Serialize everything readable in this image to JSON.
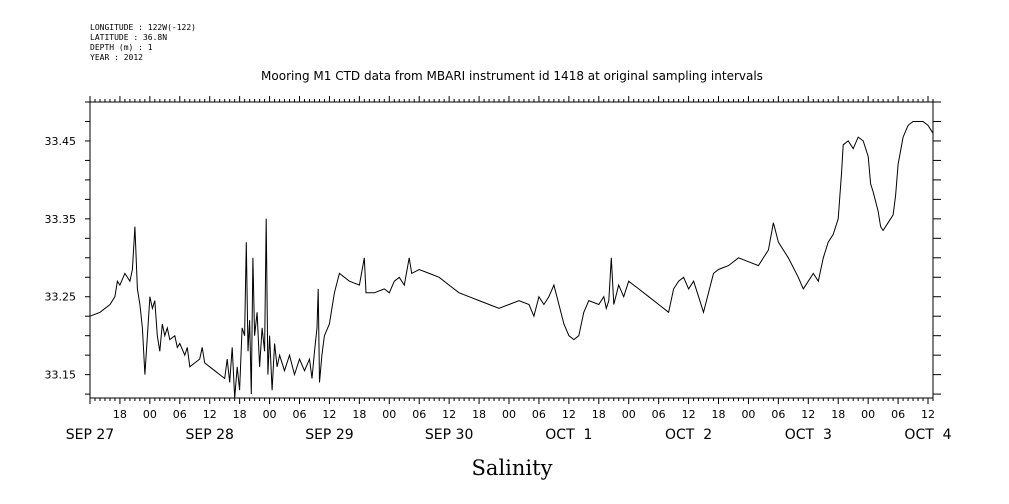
{
  "header": {
    "lines": [
      "LONGITUDE : 122W(-122)",
      "LATITUDE : 36.8N",
      "DEPTH (m) : 1",
      "YEAR : 2012"
    ]
  },
  "chart_data": {
    "type": "line",
    "title": "Mooring M1 CTD data from MBARI instrument id 1418 at original sampling intervals",
    "xlabel": "Salinity",
    "ylabel": "",
    "xlim": [
      "2012-09-27 12:00",
      "2012-10-04 13:00"
    ],
    "ylim": [
      33.12,
      33.5
    ],
    "yticks": [
      33.15,
      33.25,
      33.35,
      33.45
    ],
    "ytick_labels": [
      "33.15",
      "33.25",
      "33.35",
      "33.45"
    ],
    "xtick_hours": [
      {
        "t": "2012-09-27 18:00",
        "label": "18"
      },
      {
        "t": "2012-09-28 00:00",
        "label": "00"
      },
      {
        "t": "2012-09-28 06:00",
        "label": "06"
      },
      {
        "t": "2012-09-28 12:00",
        "label": "12"
      },
      {
        "t": "2012-09-28 18:00",
        "label": "18"
      },
      {
        "t": "2012-09-29 00:00",
        "label": "00"
      },
      {
        "t": "2012-09-29 06:00",
        "label": "06"
      },
      {
        "t": "2012-09-29 12:00",
        "label": "12"
      },
      {
        "t": "2012-09-29 18:00",
        "label": "18"
      },
      {
        "t": "2012-09-30 00:00",
        "label": "00"
      },
      {
        "t": "2012-09-30 06:00",
        "label": "06"
      },
      {
        "t": "2012-09-30 12:00",
        "label": "12"
      },
      {
        "t": "2012-09-30 18:00",
        "label": "18"
      },
      {
        "t": "2012-10-01 00:00",
        "label": "00"
      },
      {
        "t": "2012-10-01 06:00",
        "label": "06"
      },
      {
        "t": "2012-10-01 12:00",
        "label": "12"
      },
      {
        "t": "2012-10-01 18:00",
        "label": "18"
      },
      {
        "t": "2012-10-02 00:00",
        "label": "00"
      },
      {
        "t": "2012-10-02 06:00",
        "label": "06"
      },
      {
        "t": "2012-10-02 12:00",
        "label": "12"
      },
      {
        "t": "2012-10-02 18:00",
        "label": "18"
      },
      {
        "t": "2012-10-03 00:00",
        "label": "00"
      },
      {
        "t": "2012-10-03 06:00",
        "label": "06"
      },
      {
        "t": "2012-10-03 12:00",
        "label": "12"
      },
      {
        "t": "2012-10-03 18:00",
        "label": "18"
      },
      {
        "t": "2012-10-04 00:00",
        "label": "00"
      },
      {
        "t": "2012-10-04 06:00",
        "label": "06"
      },
      {
        "t": "2012-10-04 12:00",
        "label": "12"
      }
    ],
    "xtick_days": [
      {
        "t": "2012-09-27 12:00",
        "label": "SEP 27"
      },
      {
        "t": "2012-09-28 12:00",
        "label": "SEP 28"
      },
      {
        "t": "2012-09-29 12:00",
        "label": "SEP 29"
      },
      {
        "t": "2012-09-30 12:00",
        "label": "SEP 30"
      },
      {
        "t": "2012-10-01 12:00",
        "label": "OCT  1"
      },
      {
        "t": "2012-10-02 12:00",
        "label": "OCT  2"
      },
      {
        "t": "2012-10-03 12:00",
        "label": "OCT  3"
      },
      {
        "t": "2012-10-04 12:00",
        "label": "OCT  4"
      }
    ],
    "grid": false,
    "series": [
      {
        "color": "#000000",
        "points": [
          [
            "2012-09-27 12:00",
            33.225
          ],
          [
            "2012-09-27 14:00",
            33.23
          ],
          [
            "2012-09-27 16:00",
            33.24
          ],
          [
            "2012-09-27 17:00",
            33.25
          ],
          [
            "2012-09-27 17:30",
            33.27
          ],
          [
            "2012-09-27 18:00",
            33.265
          ],
          [
            "2012-09-27 19:00",
            33.28
          ],
          [
            "2012-09-27 20:00",
            33.27
          ],
          [
            "2012-09-27 20:30",
            33.285
          ],
          [
            "2012-09-27 21:00",
            33.34
          ],
          [
            "2012-09-27 21:30",
            33.26
          ],
          [
            "2012-09-27 22:00",
            33.24
          ],
          [
            "2012-09-27 22:30",
            33.21
          ],
          [
            "2012-09-27 23:00",
            33.15
          ],
          [
            "2012-09-27 23:30",
            33.2
          ],
          [
            "2012-09-28 00:00",
            33.25
          ],
          [
            "2012-09-28 00:30",
            33.235
          ],
          [
            "2012-09-28 01:00",
            33.245
          ],
          [
            "2012-09-28 01:30",
            33.2
          ],
          [
            "2012-09-28 02:00",
            33.18
          ],
          [
            "2012-09-28 02:30",
            33.215
          ],
          [
            "2012-09-28 03:00",
            33.2
          ],
          [
            "2012-09-28 03:30",
            33.21
          ],
          [
            "2012-09-28 04:00",
            33.195
          ],
          [
            "2012-09-28 05:00",
            33.2
          ],
          [
            "2012-09-28 05:30",
            33.185
          ],
          [
            "2012-09-28 06:00",
            33.19
          ],
          [
            "2012-09-28 07:00",
            33.175
          ],
          [
            "2012-09-28 07:30",
            33.185
          ],
          [
            "2012-09-28 08:00",
            33.16
          ],
          [
            "2012-09-28 09:00",
            33.165
          ],
          [
            "2012-09-28 10:00",
            33.17
          ],
          [
            "2012-09-28 10:30",
            33.185
          ],
          [
            "2012-09-28 11:00",
            33.165
          ],
          [
            "2012-09-28 12:00",
            33.16
          ],
          [
            "2012-09-28 13:00",
            33.155
          ],
          [
            "2012-09-28 14:00",
            33.15
          ],
          [
            "2012-09-28 15:00",
            33.145
          ],
          [
            "2012-09-28 15:30",
            33.17
          ],
          [
            "2012-09-28 16:00",
            33.14
          ],
          [
            "2012-09-28 16:30",
            33.185
          ],
          [
            "2012-09-28 17:00",
            33.12
          ],
          [
            "2012-09-28 17:30",
            33.16
          ],
          [
            "2012-09-28 18:00",
            33.13
          ],
          [
            "2012-09-28 18:30",
            33.21
          ],
          [
            "2012-09-28 19:00",
            33.2
          ],
          [
            "2012-09-28 19:20",
            33.32
          ],
          [
            "2012-09-28 19:40",
            33.18
          ],
          [
            "2012-09-28 20:00",
            33.22
          ],
          [
            "2012-09-28 20:20",
            33.125
          ],
          [
            "2012-09-28 20:40",
            33.3
          ],
          [
            "2012-09-28 21:00",
            33.2
          ],
          [
            "2012-09-28 21:30",
            33.23
          ],
          [
            "2012-09-28 22:00",
            33.16
          ],
          [
            "2012-09-28 22:30",
            33.21
          ],
          [
            "2012-09-28 23:00",
            33.18
          ],
          [
            "2012-09-28 23:20",
            33.35
          ],
          [
            "2012-09-28 23:40",
            33.15
          ],
          [
            "2012-09-29 00:00",
            33.2
          ],
          [
            "2012-09-29 00:30",
            33.13
          ],
          [
            "2012-09-29 01:00",
            33.19
          ],
          [
            "2012-09-29 01:30",
            33.16
          ],
          [
            "2012-09-29 02:00",
            33.175
          ],
          [
            "2012-09-29 03:00",
            33.155
          ],
          [
            "2012-09-29 04:00",
            33.175
          ],
          [
            "2012-09-29 05:00",
            33.15
          ],
          [
            "2012-09-29 06:00",
            33.17
          ],
          [
            "2012-09-29 07:00",
            33.155
          ],
          [
            "2012-09-29 08:00",
            33.17
          ],
          [
            "2012-09-29 08:30",
            33.145
          ],
          [
            "2012-09-29 09:00",
            33.18
          ],
          [
            "2012-09-29 09:30",
            33.21
          ],
          [
            "2012-09-29 09:45",
            33.26
          ],
          [
            "2012-09-29 10:00",
            33.14
          ],
          [
            "2012-09-29 10:30",
            33.175
          ],
          [
            "2012-09-29 11:00",
            33.2
          ],
          [
            "2012-09-29 12:00",
            33.215
          ],
          [
            "2012-09-29 13:00",
            33.255
          ],
          [
            "2012-09-29 14:00",
            33.28
          ],
          [
            "2012-09-29 16:00",
            33.27
          ],
          [
            "2012-09-29 18:00",
            33.265
          ],
          [
            "2012-09-29 19:00",
            33.3
          ],
          [
            "2012-09-29 19:20",
            33.255
          ],
          [
            "2012-09-29 21:00",
            33.255
          ],
          [
            "2012-09-29 23:00",
            33.26
          ],
          [
            "2012-09-30 00:00",
            33.255
          ],
          [
            "2012-09-30 01:00",
            33.27
          ],
          [
            "2012-09-30 02:00",
            33.275
          ],
          [
            "2012-09-30 03:00",
            33.265
          ],
          [
            "2012-09-30 04:00",
            33.3
          ],
          [
            "2012-09-30 04:30",
            33.28
          ],
          [
            "2012-09-30 06:00",
            33.285
          ],
          [
            "2012-09-30 08:00",
            33.28
          ],
          [
            "2012-09-30 10:00",
            33.275
          ],
          [
            "2012-09-30 12:00",
            33.265
          ],
          [
            "2012-09-30 14:00",
            33.255
          ],
          [
            "2012-09-30 16:00",
            33.25
          ],
          [
            "2012-09-30 18:00",
            33.245
          ],
          [
            "2012-09-30 20:00",
            33.24
          ],
          [
            "2012-09-30 22:00",
            33.235
          ],
          [
            "2012-10-01 00:00",
            33.24
          ],
          [
            "2012-10-01 02:00",
            33.245
          ],
          [
            "2012-10-01 04:00",
            33.24
          ],
          [
            "2012-10-01 05:00",
            33.225
          ],
          [
            "2012-10-01 06:00",
            33.25
          ],
          [
            "2012-10-01 07:00",
            33.24
          ],
          [
            "2012-10-01 08:00",
            33.25
          ],
          [
            "2012-10-01 09:00",
            33.265
          ],
          [
            "2012-10-01 10:00",
            33.24
          ],
          [
            "2012-10-01 11:00",
            33.215
          ],
          [
            "2012-10-01 12:00",
            33.2
          ],
          [
            "2012-10-01 13:00",
            33.195
          ],
          [
            "2012-10-01 14:00",
            33.2
          ],
          [
            "2012-10-01 15:00",
            33.23
          ],
          [
            "2012-10-01 16:00",
            33.245
          ],
          [
            "2012-10-01 18:00",
            33.24
          ],
          [
            "2012-10-01 19:00",
            33.25
          ],
          [
            "2012-10-01 19:30",
            33.235
          ],
          [
            "2012-10-01 20:00",
            33.245
          ],
          [
            "2012-10-01 20:30",
            33.3
          ],
          [
            "2012-10-01 21:00",
            33.24
          ],
          [
            "2012-10-01 22:00",
            33.265
          ],
          [
            "2012-10-01 23:00",
            33.25
          ],
          [
            "2012-10-02 00:00",
            33.27
          ],
          [
            "2012-10-02 02:00",
            33.26
          ],
          [
            "2012-10-02 04:00",
            33.25
          ],
          [
            "2012-10-02 06:00",
            33.24
          ],
          [
            "2012-10-02 08:00",
            33.23
          ],
          [
            "2012-10-02 09:00",
            33.26
          ],
          [
            "2012-10-02 10:00",
            33.27
          ],
          [
            "2012-10-02 11:00",
            33.275
          ],
          [
            "2012-10-02 12:00",
            33.26
          ],
          [
            "2012-10-02 13:00",
            33.27
          ],
          [
            "2012-10-02 14:00",
            33.25
          ],
          [
            "2012-10-02 15:00",
            33.23
          ],
          [
            "2012-10-02 16:00",
            33.255
          ],
          [
            "2012-10-02 17:00",
            33.28
          ],
          [
            "2012-10-02 18:00",
            33.285
          ],
          [
            "2012-10-02 20:00",
            33.29
          ],
          [
            "2012-10-02 22:00",
            33.3
          ],
          [
            "2012-10-03 00:00",
            33.295
          ],
          [
            "2012-10-03 02:00",
            33.29
          ],
          [
            "2012-10-03 04:00",
            33.31
          ],
          [
            "2012-10-03 05:00",
            33.345
          ],
          [
            "2012-10-03 06:00",
            33.32
          ],
          [
            "2012-10-03 08:00",
            33.3
          ],
          [
            "2012-10-03 10:00",
            33.275
          ],
          [
            "2012-10-03 11:00",
            33.26
          ],
          [
            "2012-10-03 12:00",
            33.27
          ],
          [
            "2012-10-03 13:00",
            33.28
          ],
          [
            "2012-10-03 14:00",
            33.27
          ],
          [
            "2012-10-03 15:00",
            33.3
          ],
          [
            "2012-10-03 16:00",
            33.32
          ],
          [
            "2012-10-03 17:00",
            33.33
          ],
          [
            "2012-10-03 18:00",
            33.35
          ],
          [
            "2012-10-03 18:40",
            33.41
          ],
          [
            "2012-10-03 19:00",
            33.445
          ],
          [
            "2012-10-03 20:00",
            33.45
          ],
          [
            "2012-10-03 21:00",
            33.44
          ],
          [
            "2012-10-03 22:00",
            33.455
          ],
          [
            "2012-10-03 23:00",
            33.45
          ],
          [
            "2012-10-04 00:00",
            33.43
          ],
          [
            "2012-10-04 00:30",
            33.395
          ],
          [
            "2012-10-04 01:00",
            33.385
          ],
          [
            "2012-10-04 02:00",
            33.36
          ],
          [
            "2012-10-04 02:30",
            33.34
          ],
          [
            "2012-10-04 03:00",
            33.335
          ],
          [
            "2012-10-04 04:00",
            33.345
          ],
          [
            "2012-10-04 05:00",
            33.355
          ],
          [
            "2012-10-04 05:30",
            33.38
          ],
          [
            "2012-10-04 06:00",
            33.42
          ],
          [
            "2012-10-04 07:00",
            33.455
          ],
          [
            "2012-10-04 08:00",
            33.47
          ],
          [
            "2012-10-04 09:00",
            33.475
          ],
          [
            "2012-10-04 10:00",
            33.475
          ],
          [
            "2012-10-04 11:00",
            33.475
          ],
          [
            "2012-10-04 12:00",
            33.47
          ],
          [
            "2012-10-04 12:30",
            33.465
          ],
          [
            "2012-10-04 13:00",
            33.46
          ]
        ]
      }
    ]
  }
}
